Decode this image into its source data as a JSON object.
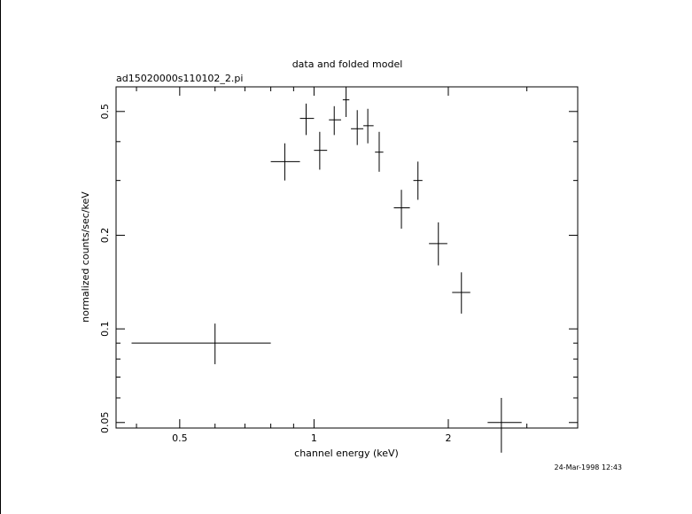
{
  "chart_data": {
    "type": "scatter",
    "title": "data and folded model",
    "subtitle": "ad15020000s110102_2.pi",
    "xlabel": "channel energy (keV)",
    "ylabel": "normalized counts/sec/keV",
    "timestamp": "24-Mar-1998 12:43",
    "x_scale": "log",
    "y_scale": "log",
    "xlim": [
      0.36,
      3.9
    ],
    "ylim": [
      0.048,
      0.6
    ],
    "x_ticks": [
      {
        "value": 0.5,
        "label": "0.5"
      },
      {
        "value": 1,
        "label": "1"
      },
      {
        "value": 2,
        "label": "2"
      }
    ],
    "y_ticks": [
      {
        "value": 0.05,
        "label": "0.05"
      },
      {
        "value": 0.1,
        "label": "0.1"
      },
      {
        "value": 0.2,
        "label": "0.2"
      },
      {
        "value": 0.5,
        "label": "0.5"
      }
    ],
    "grid": false,
    "series": [
      {
        "points": [
          {
            "x": 0.6,
            "xlo": 0.39,
            "xhi": 0.8,
            "y": 0.09,
            "ylo": 0.077,
            "yhi": 0.104
          },
          {
            "x": 0.86,
            "xlo": 0.8,
            "xhi": 0.93,
            "y": 0.345,
            "ylo": 0.3,
            "yhi": 0.395
          },
          {
            "x": 0.96,
            "xlo": 0.93,
            "xhi": 1.0,
            "y": 0.475,
            "ylo": 0.42,
            "yhi": 0.53
          },
          {
            "x": 1.03,
            "xlo": 1.0,
            "xhi": 1.07,
            "y": 0.375,
            "ylo": 0.325,
            "yhi": 0.43
          },
          {
            "x": 1.11,
            "xlo": 1.08,
            "xhi": 1.15,
            "y": 0.47,
            "ylo": 0.42,
            "yhi": 0.52
          },
          {
            "x": 1.18,
            "xlo": 1.16,
            "xhi": 1.2,
            "y": 0.545,
            "ylo": 0.48,
            "yhi": 0.6
          },
          {
            "x": 1.25,
            "xlo": 1.21,
            "xhi": 1.29,
            "y": 0.44,
            "ylo": 0.39,
            "yhi": 0.505
          },
          {
            "x": 1.32,
            "xlo": 1.29,
            "xhi": 1.36,
            "y": 0.45,
            "ylo": 0.395,
            "yhi": 0.51
          },
          {
            "x": 1.4,
            "xlo": 1.37,
            "xhi": 1.43,
            "y": 0.37,
            "ylo": 0.32,
            "yhi": 0.43
          },
          {
            "x": 1.57,
            "xlo": 1.51,
            "xhi": 1.64,
            "y": 0.245,
            "ylo": 0.21,
            "yhi": 0.28
          },
          {
            "x": 1.71,
            "xlo": 1.67,
            "xhi": 1.75,
            "y": 0.3,
            "ylo": 0.26,
            "yhi": 0.345
          },
          {
            "x": 1.9,
            "xlo": 1.81,
            "xhi": 1.99,
            "y": 0.188,
            "ylo": 0.16,
            "yhi": 0.22
          },
          {
            "x": 2.14,
            "xlo": 2.04,
            "xhi": 2.24,
            "y": 0.131,
            "ylo": 0.112,
            "yhi": 0.152
          },
          {
            "x": 2.63,
            "xlo": 2.45,
            "xhi": 2.92,
            "y": 0.05,
            "ylo": 0.04,
            "yhi": 0.06
          }
        ]
      }
    ]
  }
}
